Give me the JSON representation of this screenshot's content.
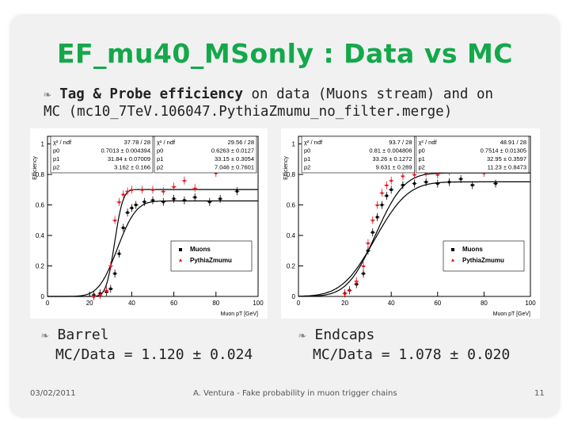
{
  "slide": {
    "title": "EF_mu40_MSonly : Data vs MC",
    "subtitle_bold": "Tag & Probe efficiency",
    "subtitle_rest1": " on data (Muons stream) and on",
    "subtitle_line2": "MC (mc10_7TeV.106047.PythiaZmumu_no_filter.merge)",
    "barrel_label": "Barrel",
    "barrel_ratio": "MC/Data = 1.120 ± 0.024",
    "endcaps_label": "Endcaps",
    "endcaps_ratio": "MC/Data = 1.078 ± 0.020",
    "footer_date": "03/02/2011",
    "footer_center": "A. Ventura - Fake probability in muon trigger chains",
    "footer_page": "11",
    "accent_color": "#14a84b",
    "bullet_icon": "bullet-glyph"
  },
  "chart_data": [
    {
      "type": "scatter",
      "xlabel": "Muon pT [GeV]",
      "ylabel": "Efficiency",
      "xlim": [
        0,
        100
      ],
      "ylim": [
        0,
        1.05
      ],
      "x_ticks": [
        "0",
        "20",
        "40",
        "60",
        "80",
        "100"
      ],
      "y_ticks": [
        "0",
        "0.2",
        "0.4",
        "0.6",
        "0.8",
        "1"
      ],
      "legend": [
        "Muons",
        "PythiaZmumu"
      ],
      "legend_position": "bottom-right",
      "fit_boxes": [
        {
          "rows": [
            [
              "χ² / ndf",
              "37.78 / 28"
            ],
            [
              "p0",
              "0.7013 ± 0.004394"
            ],
            [
              "p1",
              "31.84 ± 0.07009"
            ],
            [
              "p2",
              "3.162 ± 0.166"
            ]
          ]
        },
        {
          "rows": [
            [
              "χ² / ndf",
              "29.56 / 28"
            ],
            [
              "p0",
              "0.6263 ± 0.0127"
            ],
            [
              "p1",
              "33.15 ± 0.3054"
            ],
            [
              "p2",
              "7.046 ± 0.7601"
            ]
          ]
        }
      ],
      "series": [
        {
          "name": "Muons",
          "color": "#000000",
          "p0": 0.6263,
          "p1": 33.15,
          "p2": 7.046,
          "points": [
            [
              22,
              0.01
            ],
            [
              25,
              0.02
            ],
            [
              28,
              0.03
            ],
            [
              30,
              0.05
            ],
            [
              32,
              0.15
            ],
            [
              34,
              0.28
            ],
            [
              36,
              0.45
            ],
            [
              38,
              0.55
            ],
            [
              40,
              0.58
            ],
            [
              42,
              0.6
            ],
            [
              46,
              0.62
            ],
            [
              50,
              0.63
            ],
            [
              55,
              0.62
            ],
            [
              60,
              0.64
            ],
            [
              65,
              0.63
            ],
            [
              70,
              0.65
            ],
            [
              77,
              0.62
            ],
            [
              82,
              0.64
            ],
            [
              90,
              0.69
            ]
          ]
        },
        {
          "name": "PythiaZmumu",
          "color": "#e0141e",
          "p0": 0.7013,
          "p1": 31.84,
          "p2": 3.162,
          "points": [
            [
              22,
              0.0
            ],
            [
              25,
              0.01
            ],
            [
              28,
              0.04
            ],
            [
              30,
              0.2
            ],
            [
              32,
              0.5
            ],
            [
              34,
              0.62
            ],
            [
              36,
              0.67
            ],
            [
              38,
              0.69
            ],
            [
              40,
              0.7
            ],
            [
              45,
              0.7
            ],
            [
              50,
              0.7
            ],
            [
              55,
              0.69
            ],
            [
              60,
              0.72
            ],
            [
              65,
              0.76
            ],
            [
              70,
              0.71
            ],
            [
              80,
              0.81
            ]
          ]
        }
      ]
    },
    {
      "type": "scatter",
      "xlabel": "Muon pT [GeV]",
      "ylabel": "Efficiency",
      "xlim": [
        0,
        100
      ],
      "ylim": [
        0,
        1.05
      ],
      "x_ticks": [
        "0",
        "20",
        "40",
        "60",
        "80",
        "100"
      ],
      "y_ticks": [
        "0",
        "0.2",
        "0.4",
        "0.6",
        "0.8",
        "1"
      ],
      "legend": [
        "Muons",
        "PythiaZmumu"
      ],
      "legend_position": "bottom-right",
      "fit_boxes": [
        {
          "rows": [
            [
              "χ² / ndf",
              "93.7 / 28"
            ],
            [
              "p0",
              "0.81 ± 0.004806"
            ],
            [
              "p1",
              "33.26 ± 0.1272"
            ],
            [
              "p2",
              "9.631 ± 0.289"
            ]
          ]
        },
        {
          "rows": [
            [
              "χ² / ndf",
              "48.91 / 28"
            ],
            [
              "p0",
              "0.7514 ± 0.01305"
            ],
            [
              "p1",
              "32.95 ± 0.3597"
            ],
            [
              "p2",
              "11.23 ± 0.8473"
            ]
          ]
        }
      ],
      "series": [
        {
          "name": "Muons",
          "color": "#000000",
          "p0": 0.7514,
          "p1": 32.95,
          "p2": 11.23,
          "points": [
            [
              20,
              0.02
            ],
            [
              22,
              0.04
            ],
            [
              25,
              0.08
            ],
            [
              28,
              0.15
            ],
            [
              30,
              0.3
            ],
            [
              32,
              0.42
            ],
            [
              34,
              0.52
            ],
            [
              36,
              0.6
            ],
            [
              38,
              0.66
            ],
            [
              40,
              0.7
            ],
            [
              45,
              0.73
            ],
            [
              50,
              0.74
            ],
            [
              55,
              0.75
            ],
            [
              60,
              0.74
            ],
            [
              65,
              0.75
            ],
            [
              70,
              0.77
            ],
            [
              75,
              0.73
            ],
            [
              85,
              0.74
            ]
          ]
        },
        {
          "name": "PythiaZmumu",
          "color": "#e0141e",
          "p0": 0.81,
          "p1": 33.26,
          "p2": 9.631,
          "points": [
            [
              20,
              0.02
            ],
            [
              22,
              0.04
            ],
            [
              25,
              0.1
            ],
            [
              28,
              0.2
            ],
            [
              30,
              0.35
            ],
            [
              32,
              0.5
            ],
            [
              34,
              0.6
            ],
            [
              36,
              0.68
            ],
            [
              38,
              0.73
            ],
            [
              40,
              0.76
            ],
            [
              45,
              0.79
            ],
            [
              50,
              0.8
            ],
            [
              55,
              0.81
            ],
            [
              60,
              0.8
            ],
            [
              65,
              0.82
            ],
            [
              70,
              0.84
            ],
            [
              80,
              0.81
            ],
            [
              85,
              0.9
            ]
          ]
        }
      ]
    }
  ]
}
